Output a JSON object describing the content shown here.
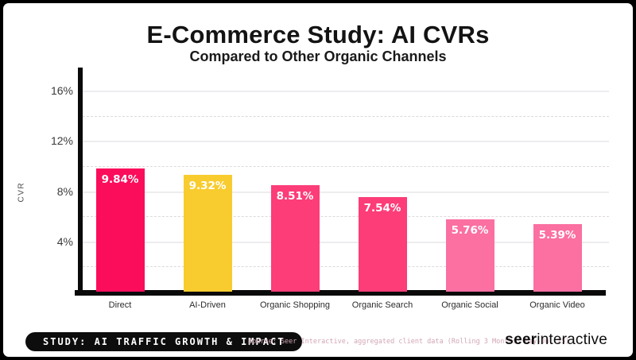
{
  "header": {
    "title": "E-Commerce Study: AI CVRs",
    "subtitle": "Compared to Other Organic Channels"
  },
  "chart_data": {
    "type": "bar",
    "title": "E-Commerce Study: AI CVRs",
    "subtitle": "Compared to Other Organic Channels",
    "xlabel": "",
    "ylabel": "CVR",
    "categories": [
      "Direct",
      "AI-Driven",
      "Organic Shopping",
      "Organic Search",
      "Organic Social",
      "Organic Video"
    ],
    "values": [
      9.84,
      9.32,
      8.51,
      7.54,
      5.76,
      5.39
    ],
    "value_labels": [
      "9.84%",
      "9.32%",
      "8.51%",
      "7.54%",
      "5.76%",
      "5.39%"
    ],
    "bar_colors": [
      "#FB0D5C",
      "#F8CC2E",
      "#FC3D78",
      "#FC3D78",
      "#FB6FA1",
      "#FB6FA1"
    ],
    "ylim": [
      0,
      17.6
    ],
    "y_ticks": [
      {
        "value": 4,
        "label": "4%"
      },
      {
        "value": 8,
        "label": "8%"
      },
      {
        "value": 12,
        "label": "12%"
      },
      {
        "value": 16,
        "label": "16%"
      }
    ],
    "grid_major": [
      4,
      8,
      12,
      16
    ],
    "grid_minor": [
      2,
      6,
      10,
      14
    ],
    "legend": "none"
  },
  "footer": {
    "badge": "STUDY: AI TRAFFIC GROWTH & IMPACT",
    "source": "Source: Seer Interactive, aggregated client data (Rolling 3 Months: May-Jul'25)",
    "logo_bold": "seer",
    "logo_regular": "interactive"
  },
  "colors": {
    "frame": "#000000",
    "card_bg": "#ffffff",
    "axis": "#0a0a0a",
    "accent_pink": "#FB0D5C",
    "accent_yellow": "#F8CC2E",
    "mid_pink": "#FC3D78",
    "light_pink": "#FB6FA1",
    "source_text": "#d2a6b5"
  }
}
